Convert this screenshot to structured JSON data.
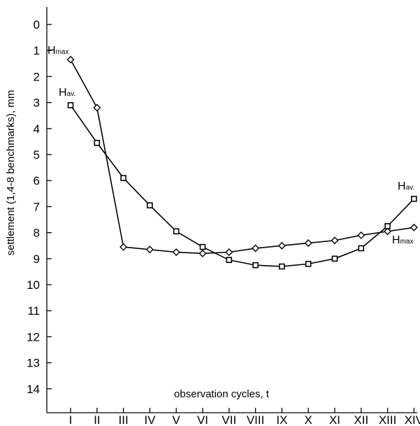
{
  "chart_data": {
    "type": "line",
    "xlabel": "observation cycles, t",
    "ylabel": "settlement (1,4-8 benchmarks), mm",
    "ylim": [
      0,
      15
    ],
    "y_inverted": true,
    "yticks": [
      "0",
      "1",
      "2",
      "3",
      "4",
      "5",
      "6",
      "7",
      "8",
      "9",
      "10",
      "11",
      "12",
      "13",
      "14"
    ],
    "categories": [
      "I",
      "II",
      "III",
      "IV",
      "V",
      "VI",
      "VII",
      "VIII",
      "IX",
      "X",
      "XI",
      "XII",
      "XIII",
      "XIV"
    ],
    "grid": false,
    "series": [
      {
        "name": "Hmax",
        "label_main": "H",
        "label_sub": "max",
        "marker": "diamond",
        "values": [
          1.35,
          3.2,
          8.55,
          8.65,
          8.75,
          8.8,
          8.75,
          8.6,
          8.5,
          8.4,
          8.3,
          8.1,
          7.95,
          7.8
        ]
      },
      {
        "name": "Hav.",
        "label_main": "H",
        "label_sub": "av.",
        "marker": "square",
        "values": [
          3.1,
          4.55,
          5.9,
          6.95,
          7.95,
          8.55,
          9.05,
          9.25,
          9.3,
          9.2,
          9.0,
          8.6,
          7.75,
          6.7
        ]
      }
    ],
    "colors": {
      "line": "#000000",
      "axis": "#000000"
    }
  }
}
